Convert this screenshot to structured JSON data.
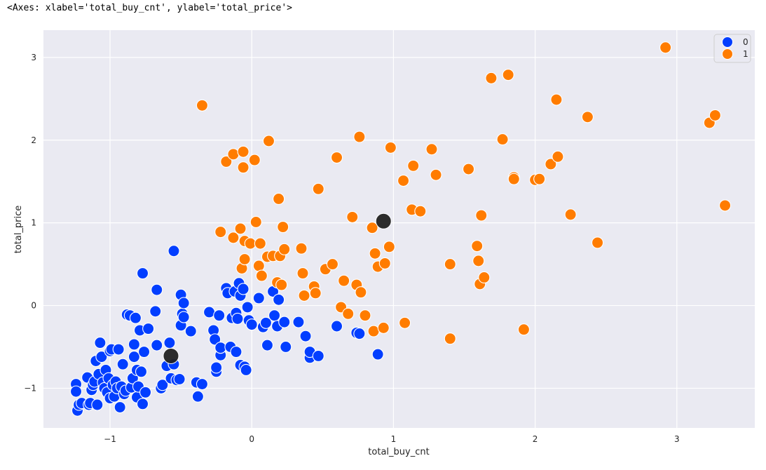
{
  "output": {
    "repr": "<Axes: xlabel='total_buy_cnt', ylabel='total_price'>"
  },
  "colors": {
    "background": "#EAEAF2",
    "grid": "#ffffff",
    "series_0": "#023EFF",
    "series_1": "#FF7C00",
    "centroid": "#222222"
  },
  "chart_data": {
    "type": "scatter",
    "xlabel": "total_buy_cnt",
    "ylabel": "total_price",
    "xlim": [
      -1.47,
      3.55
    ],
    "ylim": [
      -1.48,
      3.33
    ],
    "xticks": [
      -1,
      0,
      1,
      2,
      3
    ],
    "yticks": [
      -1,
      0,
      1,
      2,
      3
    ],
    "grid": true,
    "legend": {
      "position": "top-right",
      "entries": [
        "0",
        "1"
      ]
    },
    "series": [
      {
        "name": "0",
        "color": "#023EFF",
        "points": [
          [
            -1.24,
            -0.95
          ],
          [
            -1.24,
            -1.04
          ],
          [
            -1.23,
            -1.27
          ],
          [
            -1.22,
            -1.2
          ],
          [
            -1.2,
            -1.18
          ],
          [
            -1.16,
            -0.87
          ],
          [
            -1.15,
            -1.2
          ],
          [
            -1.14,
            -1.18
          ],
          [
            -1.13,
            -1.02
          ],
          [
            -1.12,
            -0.96
          ],
          [
            -1.11,
            -0.92
          ],
          [
            -1.1,
            -0.67
          ],
          [
            -1.09,
            -1.2
          ],
          [
            -1.08,
            -0.83
          ],
          [
            -1.07,
            -0.45
          ],
          [
            -1.06,
            -0.62
          ],
          [
            -1.05,
            -0.93
          ],
          [
            -1.04,
            -1.0
          ],
          [
            -1.03,
            -0.78
          ],
          [
            -1.02,
            -1.05
          ],
          [
            -1.01,
            -0.88
          ],
          [
            -1.0,
            -0.55
          ],
          [
            -1.0,
            -1.12
          ],
          [
            -0.99,
            -0.53
          ],
          [
            -0.98,
            -0.96
          ],
          [
            -0.97,
            -1.1
          ],
          [
            -0.96,
            -0.92
          ],
          [
            -0.95,
            -1.0
          ],
          [
            -0.94,
            -0.53
          ],
          [
            -0.93,
            -1.23
          ],
          [
            -0.92,
            -0.98
          ],
          [
            -0.91,
            -0.71
          ],
          [
            -0.9,
            -1.07
          ],
          [
            -0.89,
            -1.03
          ],
          [
            -0.88,
            -0.11
          ],
          [
            -0.86,
            -0.12
          ],
          [
            -0.85,
            -0.99
          ],
          [
            -0.84,
            -0.88
          ],
          [
            -0.83,
            -0.47
          ],
          [
            -0.83,
            -0.62
          ],
          [
            -0.82,
            -0.15
          ],
          [
            -0.81,
            -0.78
          ],
          [
            -0.81,
            -1.11
          ],
          [
            -0.8,
            -0.98
          ],
          [
            -0.79,
            -0.3
          ],
          [
            -0.78,
            -0.8
          ],
          [
            -0.77,
            0.39
          ],
          [
            -0.77,
            -1.19
          ],
          [
            -0.76,
            -0.56
          ],
          [
            -0.75,
            -1.05
          ],
          [
            -0.73,
            -0.28
          ],
          [
            -0.68,
            -0.07
          ],
          [
            -0.67,
            0.19
          ],
          [
            -0.67,
            -0.48
          ],
          [
            -0.64,
            -1.0
          ],
          [
            -0.63,
            -0.96
          ],
          [
            -0.6,
            -0.73
          ],
          [
            -0.58,
            -0.45
          ],
          [
            -0.57,
            -0.88
          ],
          [
            -0.55,
            0.66
          ],
          [
            -0.55,
            -0.71
          ],
          [
            -0.53,
            -0.9
          ],
          [
            -0.51,
            -0.89
          ],
          [
            -0.5,
            0.13
          ],
          [
            -0.5,
            -0.24
          ],
          [
            -0.49,
            -0.1
          ],
          [
            -0.48,
            0.03
          ],
          [
            -0.48,
            -0.14
          ],
          [
            -0.43,
            -0.31
          ],
          [
            -0.39,
            -0.93
          ],
          [
            -0.38,
            -1.1
          ],
          [
            -0.35,
            -0.95
          ],
          [
            -0.3,
            -0.08
          ],
          [
            -0.27,
            -0.3
          ],
          [
            -0.26,
            -0.41
          ],
          [
            -0.25,
            -0.8
          ],
          [
            -0.25,
            -0.75
          ],
          [
            -0.23,
            -0.12
          ],
          [
            -0.22,
            -0.6
          ],
          [
            -0.22,
            -0.51
          ],
          [
            -0.18,
            0.21
          ],
          [
            -0.17,
            0.15
          ],
          [
            -0.15,
            -0.5
          ],
          [
            -0.14,
            -0.15
          ],
          [
            -0.12,
            0.17
          ],
          [
            -0.11,
            -0.56
          ],
          [
            -0.11,
            -0.09
          ],
          [
            -0.1,
            -0.16
          ],
          [
            -0.09,
            0.27
          ],
          [
            -0.08,
            -0.72
          ],
          [
            -0.08,
            0.12
          ],
          [
            -0.06,
            0.2
          ],
          [
            -0.05,
            -0.74
          ],
          [
            -0.04,
            -0.78
          ],
          [
            -0.03,
            -0.02
          ],
          [
            -0.02,
            -0.18
          ],
          [
            0.0,
            -0.23
          ],
          [
            0.05,
            0.09
          ],
          [
            0.08,
            -0.26
          ],
          [
            0.1,
            -0.21
          ],
          [
            0.11,
            -0.48
          ],
          [
            0.15,
            0.17
          ],
          [
            0.16,
            -0.12
          ],
          [
            0.18,
            -0.25
          ],
          [
            0.19,
            0.07
          ],
          [
            0.23,
            -0.2
          ],
          [
            0.24,
            -0.5
          ],
          [
            0.33,
            -0.2
          ],
          [
            0.38,
            -0.37
          ],
          [
            0.41,
            -0.63
          ],
          [
            0.41,
            -0.56
          ],
          [
            0.47,
            -0.61
          ],
          [
            0.6,
            -0.25
          ],
          [
            0.74,
            -0.33
          ],
          [
            0.76,
            -0.34
          ],
          [
            0.89,
            -0.59
          ]
        ]
      },
      {
        "name": "1",
        "color": "#FF7C00",
        "points": [
          [
            -0.35,
            2.42
          ],
          [
            -0.22,
            0.89
          ],
          [
            -0.18,
            1.74
          ],
          [
            -0.13,
            1.83
          ],
          [
            -0.13,
            0.82
          ],
          [
            -0.08,
            0.93
          ],
          [
            -0.07,
            0.45
          ],
          [
            -0.06,
            1.86
          ],
          [
            -0.06,
            1.67
          ],
          [
            -0.05,
            0.78
          ],
          [
            -0.05,
            0.56
          ],
          [
            -0.01,
            0.75
          ],
          [
            0.02,
            1.76
          ],
          [
            0.03,
            1.01
          ],
          [
            0.05,
            0.48
          ],
          [
            0.06,
            0.75
          ],
          [
            0.07,
            0.36
          ],
          [
            0.11,
            0.59
          ],
          [
            0.12,
            1.99
          ],
          [
            0.15,
            0.6
          ],
          [
            0.18,
            0.28
          ],
          [
            0.19,
            1.29
          ],
          [
            0.2,
            0.6
          ],
          [
            0.21,
            0.25
          ],
          [
            0.22,
            0.95
          ],
          [
            0.23,
            0.68
          ],
          [
            0.35,
            0.69
          ],
          [
            0.36,
            0.39
          ],
          [
            0.37,
            0.12
          ],
          [
            0.44,
            0.23
          ],
          [
            0.45,
            0.15
          ],
          [
            0.47,
            1.41
          ],
          [
            0.52,
            0.44
          ],
          [
            0.57,
            0.5
          ],
          [
            0.6,
            1.79
          ],
          [
            0.63,
            -0.02
          ],
          [
            0.65,
            0.3
          ],
          [
            0.68,
            -0.1
          ],
          [
            0.71,
            1.07
          ],
          [
            0.74,
            0.25
          ],
          [
            0.76,
            2.04
          ],
          [
            0.77,
            0.16
          ],
          [
            0.8,
            -0.12
          ],
          [
            0.85,
            0.94
          ],
          [
            0.86,
            -0.31
          ],
          [
            0.87,
            0.63
          ],
          [
            0.89,
            0.47
          ],
          [
            0.93,
            -0.27
          ],
          [
            0.94,
            0.51
          ],
          [
            0.97,
            0.71
          ],
          [
            0.98,
            1.91
          ],
          [
            1.07,
            1.51
          ],
          [
            1.08,
            -0.21
          ],
          [
            1.13,
            1.16
          ],
          [
            1.14,
            1.69
          ],
          [
            1.19,
            1.14
          ],
          [
            1.27,
            1.89
          ],
          [
            1.3,
            1.58
          ],
          [
            1.4,
            0.5
          ],
          [
            1.4,
            -0.4
          ],
          [
            1.53,
            1.65
          ],
          [
            1.59,
            0.72
          ],
          [
            1.6,
            0.54
          ],
          [
            1.61,
            0.26
          ],
          [
            1.62,
            1.09
          ],
          [
            1.64,
            0.34
          ],
          [
            1.69,
            2.75
          ],
          [
            1.77,
            2.01
          ],
          [
            1.81,
            2.79
          ],
          [
            1.85,
            1.55
          ],
          [
            1.85,
            1.53
          ],
          [
            1.92,
            -0.29
          ],
          [
            2.0,
            1.52
          ],
          [
            2.03,
            1.53
          ],
          [
            2.11,
            1.71
          ],
          [
            2.15,
            2.49
          ],
          [
            2.16,
            1.8
          ],
          [
            2.25,
            1.1
          ],
          [
            2.37,
            2.28
          ],
          [
            2.44,
            0.76
          ],
          [
            2.92,
            3.12
          ],
          [
            3.23,
            2.21
          ],
          [
            3.27,
            2.3
          ],
          [
            3.34,
            1.21
          ]
        ]
      }
    ],
    "centroids": {
      "color": "#222222",
      "points": [
        [
          -0.57,
          -0.61
        ],
        [
          0.93,
          1.02
        ]
      ]
    }
  }
}
